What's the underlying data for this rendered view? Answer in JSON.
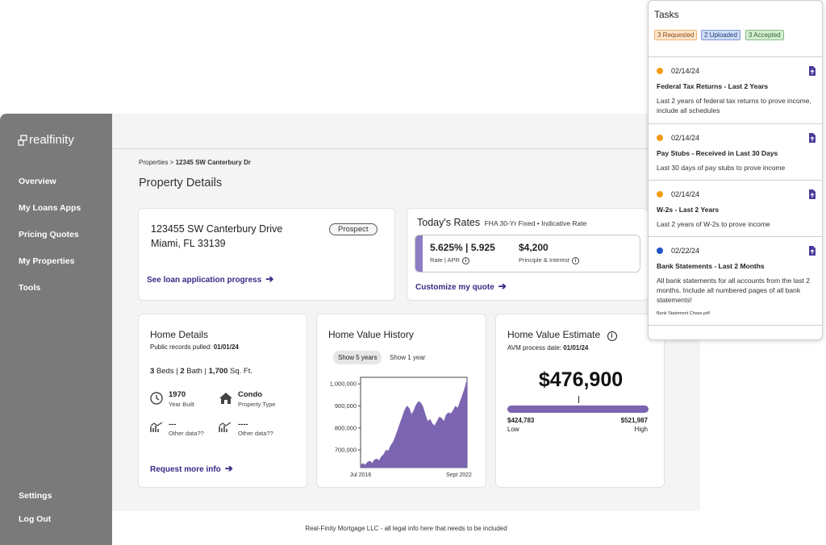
{
  "sidebar": {
    "logo": "realfinity",
    "items": [
      {
        "label": "Overview"
      },
      {
        "label": "My Loans Apps"
      },
      {
        "label": "Pricing Quotes"
      },
      {
        "label": "My Properties"
      },
      {
        "label": "Tools"
      }
    ],
    "bottom_items": [
      {
        "label": "Settings"
      },
      {
        "label": "Log Out"
      }
    ]
  },
  "breadcrumb": {
    "parent": "Properties",
    "separator": ">",
    "current": "12345 SW Canterbury Dr"
  },
  "page_title": "Property Details",
  "property": {
    "line1": "123455 SW Canterbury Drive",
    "line2": "Miami, FL 33139",
    "status": "Prospect",
    "link": "See loan application progress"
  },
  "rates": {
    "title": "Today's Rates",
    "subtitle": "FHA 30-Yr Fixed • Indicative Rate",
    "rate_apr": "5.625% | 5.925",
    "rate_apr_label": "Rate | APR",
    "payment": "$4,200",
    "payment_label": "Principle & Interest",
    "link": "Customize my quote"
  },
  "home_details": {
    "title": "Home Details",
    "records_label": "Public records pulled:",
    "records_date": "01/01/24",
    "beds": "3",
    "beds_label": "Beds |",
    "baths": "2",
    "baths_label": "Bath |",
    "sqft": "1,700",
    "sqft_label": "Sq. Ft.",
    "year_built": "1970",
    "year_built_label": "Year Built",
    "property_type": "Condo",
    "property_type_label": "Property Type",
    "other1": "---",
    "other1_label": "Other data??",
    "other2": "----",
    "other2_label": "Other data??",
    "link": "Request more info"
  },
  "history": {
    "title": "Home Value History",
    "toggle_active": "Show 5 years",
    "toggle_inactive": "Show 1 year"
  },
  "chart_data": {
    "type": "area",
    "title": "Home Value History",
    "xlabel": "",
    "ylabel": "",
    "x_tick_labels": [
      "Jul 2016",
      "Sept 2022"
    ],
    "y_ticks": [
      700000,
      800000,
      900000,
      1000000
    ],
    "y_tick_labels": [
      "700,000",
      "800,000",
      "900,000",
      "1,000,000"
    ],
    "ylim": [
      620000,
      1030000
    ],
    "color": "#7b64b0",
    "grid": false,
    "values": [
      630000,
      640000,
      632000,
      645000,
      650000,
      640000,
      655000,
      660000,
      652000,
      670000,
      680000,
      700000,
      695000,
      720000,
      735000,
      760000,
      790000,
      820000,
      850000,
      880000,
      900000,
      890000,
      860000,
      880000,
      905000,
      920000,
      915000,
      895000,
      860000,
      830000,
      840000,
      820000,
      810000,
      830000,
      850000,
      845000,
      830000,
      860000,
      870000,
      865000,
      880000,
      900000,
      890000,
      920000,
      950000,
      980000,
      1020000
    ]
  },
  "estimate": {
    "title": "Home Value Estimate",
    "process_label": "AVM process date:",
    "process_date": "01/01/24",
    "value": "$476,900",
    "low": "$424,783",
    "low_label": "Low",
    "high": "$521,987",
    "high_label": "High",
    "marker_fraction": 0.5
  },
  "footer": {
    "text": "Real-Finity Mortgage LLC - all legal info here that needs to be included"
  },
  "tasks": {
    "title": "Tasks",
    "chips": [
      {
        "label": "3 Requested",
        "bg": "#fde5cc",
        "border": "#f0b070",
        "color": "#8a4a10"
      },
      {
        "label": "2 Uploaded",
        "bg": "#cfdcf6",
        "border": "#7d97d6",
        "color": "#24407a"
      },
      {
        "label": "3 Accepted",
        "bg": "#d5ecd3",
        "border": "#84c07f",
        "color": "#2f6a2a"
      }
    ],
    "items": [
      {
        "status_color": "#f39c12",
        "date": "02/14/24",
        "title": "Federal Tax Returns - Last 2 Years",
        "desc": "Last 2 years of federal tax returns to prove income, include all schedules",
        "file": ""
      },
      {
        "status_color": "#f39c12",
        "date": "02/14/24",
        "title": "Pay Stubs - Received in Last 30 Days",
        "desc": "Last 30 days of pay stubs to prove income",
        "file": ""
      },
      {
        "status_color": "#f39c12",
        "date": "02/14/24",
        "title": "W-2s - Last 2 Years",
        "desc": "Last 2 years of W-2s to prove income",
        "file": ""
      },
      {
        "status_color": "#2054c8",
        "date": "02/22/24",
        "title": "Bank Statements - Last 2 Months",
        "desc": "All bank statements for all accounts from the last 2 months. Include all numbered pages of all bank statements!",
        "file": "Bank Statement Chase.pdf"
      }
    ]
  }
}
